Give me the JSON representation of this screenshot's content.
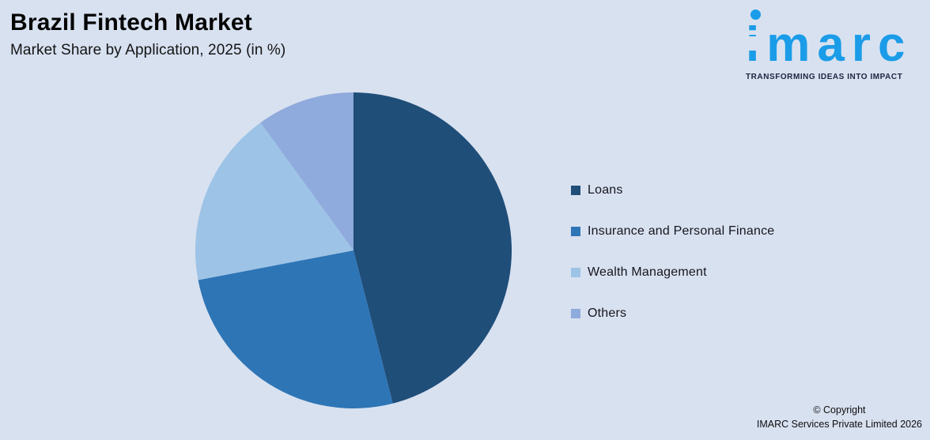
{
  "page": {
    "title": "Brazil Fintech Market",
    "subtitle": "Market Share by Application, 2025 (in %)",
    "background_color": "#D8E1F0"
  },
  "logo": {
    "text": "imarc",
    "tagline": "TRANSFORMING IDEAS INTO IMPACT",
    "brand_color": "#1B9CE8"
  },
  "chart_data": {
    "type": "pie",
    "title": "Brazil Fintech Market",
    "subtitle": "Market Share by Application, 2025 (in %)",
    "unit": "%",
    "categories": [
      "Loans",
      "Insurance and Personal Finance",
      "Wealth Management",
      "Others"
    ],
    "values": [
      46,
      26,
      18,
      10
    ],
    "colors": [
      "#1F4E79",
      "#2E75B6",
      "#9DC3E6",
      "#8FAADC"
    ],
    "start_angle_deg": 0,
    "direction": "clockwise",
    "legend_position": "right",
    "data_labels": "none"
  },
  "footer": {
    "line1": "© Copyright",
    "line2": "IMARC Services Private Limited 2026"
  }
}
